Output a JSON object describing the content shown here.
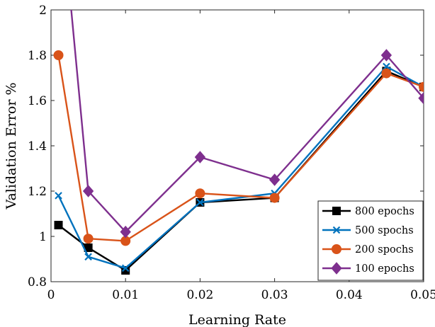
{
  "chart_data": {
    "type": "line",
    "title": "",
    "xlabel": "Learning Rate",
    "ylabel": "Validation Error %",
    "xlim": [
      0,
      0.05
    ],
    "ylim": [
      0.8,
      2
    ],
    "xticks": [
      0,
      0.01,
      0.02,
      0.03,
      0.04,
      0.05
    ],
    "xtick_labels": [
      "0",
      "0.01",
      "0.02",
      "0.03",
      "0.04",
      "0.05"
    ],
    "yticks": [
      0.8,
      1,
      1.2,
      1.4,
      1.6,
      1.8,
      2
    ],
    "ytick_labels": [
      "0.8",
      "1",
      "1.2",
      "1.4",
      "1.6",
      "1.8",
      "2"
    ],
    "grid": false,
    "legend_position": "bottom-right",
    "series": [
      {
        "name": "800 epochs",
        "color": "#000000",
        "marker": "square",
        "x": [
          0.001,
          0.005,
          0.01,
          0.02,
          0.03,
          0.045,
          0.05
        ],
        "y": [
          1.05,
          0.95,
          0.85,
          1.15,
          1.17,
          1.73,
          1.66
        ]
      },
      {
        "name": "500 spochs",
        "color": "#0072BD",
        "marker": "x",
        "x": [
          0.001,
          0.005,
          0.01,
          0.02,
          0.03,
          0.045,
          0.05
        ],
        "y": [
          1.18,
          0.91,
          0.86,
          1.15,
          1.19,
          1.75,
          1.66
        ]
      },
      {
        "name": "200 spochs",
        "color": "#D95319",
        "marker": "circle",
        "x": [
          0.001,
          0.005,
          0.01,
          0.02,
          0.03,
          0.045,
          0.05
        ],
        "y": [
          1.8,
          0.99,
          0.98,
          1.19,
          1.17,
          1.72,
          1.66
        ]
      },
      {
        "name": "100 epochs",
        "color": "#7E2F8E",
        "marker": "diamond",
        "x": [
          0.001,
          0.005,
          0.01,
          0.02,
          0.03,
          0.045,
          0.05
        ],
        "y": [
          2.6,
          1.2,
          1.02,
          1.35,
          1.25,
          1.8,
          1.61
        ]
      }
    ]
  }
}
